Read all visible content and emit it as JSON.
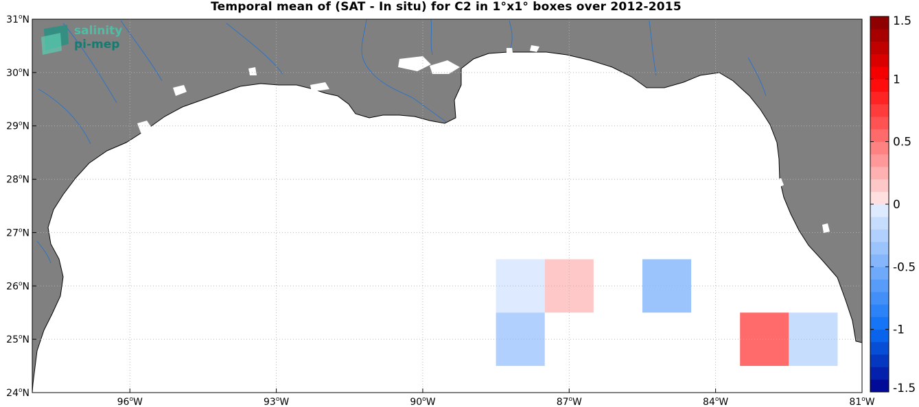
{
  "title": "Temporal mean of (SAT - In situ) for C2 in 1°x1° boxes over 2012-2015",
  "logo": {
    "line1": "salinity",
    "line2": "pi-mep"
  },
  "map": {
    "lon_range": [
      -98,
      -81
    ],
    "lat_range": [
      24,
      31
    ],
    "lon_ticks": [
      {
        "value": -96,
        "label": "96°W"
      },
      {
        "value": -93,
        "label": "93°W"
      },
      {
        "value": -90,
        "label": "90°W"
      },
      {
        "value": -87,
        "label": "87°W"
      },
      {
        "value": -84,
        "label": "84°W"
      },
      {
        "value": -81,
        "label": "81°W"
      }
    ],
    "lat_ticks": [
      {
        "value": 24,
        "label": "24°N"
      },
      {
        "value": 25,
        "label": "25°N"
      },
      {
        "value": 26,
        "label": "26°N"
      },
      {
        "value": 27,
        "label": "27°N"
      },
      {
        "value": 28,
        "label": "28°N"
      },
      {
        "value": 29,
        "label": "29°N"
      },
      {
        "value": 30,
        "label": "30°N"
      },
      {
        "value": 31,
        "label": "31°N"
      }
    ],
    "land_color": "#808080",
    "ocean_color": "#ffffff",
    "river_color": "#2f73c4",
    "grid": true
  },
  "boxes": [
    {
      "lon": -88,
      "lat": 26,
      "value": -0.1
    },
    {
      "lon": -87,
      "lat": 26,
      "value": 0.1
    },
    {
      "lon": -85,
      "lat": 26,
      "value": -0.4
    },
    {
      "lon": -88,
      "lat": 25,
      "value": -0.25
    },
    {
      "lon": -83,
      "lat": 25,
      "value": 0.55
    },
    {
      "lon": -82,
      "lat": 25,
      "value": -0.2
    }
  ],
  "colorbar": {
    "min": -1.5,
    "max": 1.5,
    "step": 0.1,
    "ticks": [
      {
        "value": 1.5,
        "label": "1.5"
      },
      {
        "value": 1,
        "label": "1"
      },
      {
        "value": 0.5,
        "label": "0.5"
      },
      {
        "value": 0,
        "label": "0"
      },
      {
        "value": -0.5,
        "label": "-0.5"
      },
      {
        "value": -1,
        "label": "-1"
      },
      {
        "value": -1.5,
        "label": "-1.5"
      }
    ]
  }
}
